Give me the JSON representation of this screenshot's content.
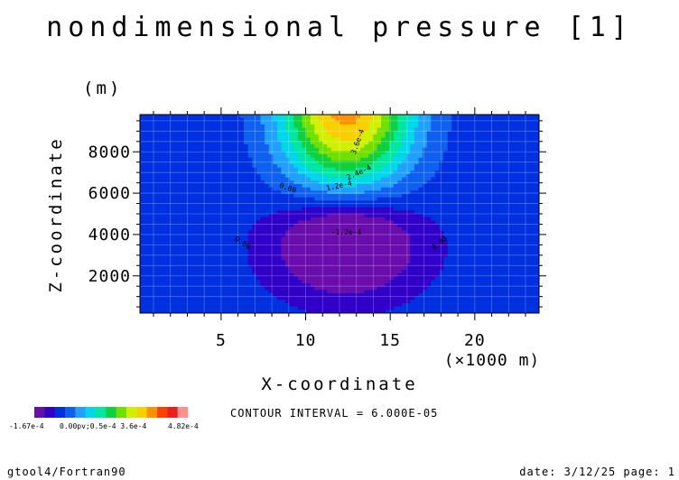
{
  "chart_data": {
    "type": "heatmap",
    "title": "nondimensional pressure [1]",
    "xlabel": "X-coordinate",
    "x_unit": "(×1000 m)",
    "ylabel": "Z-coordinate",
    "y_unit": "(m)",
    "xlim": [
      0.2,
      23.8
    ],
    "ylim": [
      200,
      9800
    ],
    "x_ticks": [
      5,
      10,
      15,
      20
    ],
    "y_ticks": [
      2000,
      4000,
      6000,
      8000
    ],
    "grid": true,
    "contour_interval_text": "CONTOUR INTERVAL = 6.000E-05",
    "colorbar": {
      "min_label": "-1.67e-4",
      "labels_text": "0.00pv;0.5e-4 3.6e-4",
      "max_label": "4.82e-4",
      "colors": [
        "#6a0dad",
        "#3000c8",
        "#0030e0",
        "#1060f0",
        "#20a0ff",
        "#00d8e8",
        "#00e8a0",
        "#10d040",
        "#70e000",
        "#d0f000",
        "#f8d000",
        "#ff9000",
        "#ff4000",
        "#e82020",
        "#ff9090"
      ]
    },
    "contour_labels": [
      {
        "text": "3.6e-4",
        "x": 13.2,
        "z": 8450,
        "rot": -70
      },
      {
        "text": "2.4e-4",
        "x": 13.2,
        "z": 6900,
        "rot": -25
      },
      {
        "text": "1.2e-4",
        "x": 12.0,
        "z": 6250,
        "rot": -12
      },
      {
        "text": "0.00",
        "x": 8.9,
        "z": 6150,
        "rot": 20
      },
      {
        "text": "-1.2e-4",
        "x": 12.4,
        "z": 4000,
        "rot": 0
      },
      {
        "text": "0.00",
        "x": 6.2,
        "z": 3500,
        "rot": 32
      },
      {
        "text": "0.00",
        "x": 18.0,
        "z": 3500,
        "rot": -40
      }
    ]
  },
  "footer": {
    "left": "gtool4/Fortran90",
    "right": "date: 3/12/25 page: 1"
  }
}
